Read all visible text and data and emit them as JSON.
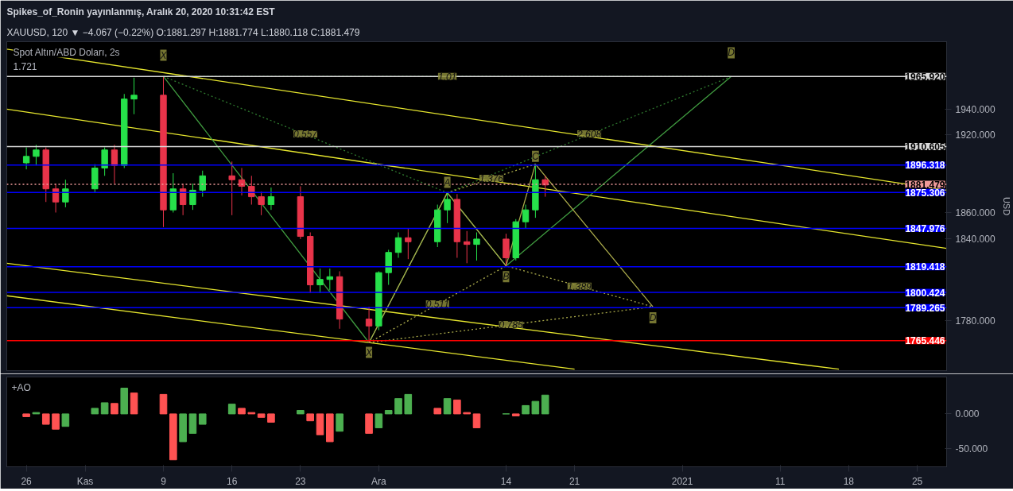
{
  "chart_data": [
    {
      "type": "candlestick",
      "title": "Spikes_of_Ronin yayınlanmış, Aralık 20, 2020 10:31:42 EST",
      "subtitle": "XAUUSD, 120 ▼ −4.067 (−0.22%) O:1881.297 H:1881.774 L:1880.118 C:1881.479",
      "ylabel": "USD",
      "x": [
        "2020-10-26",
        "2020-10-27",
        "2020-10-28",
        "2020-10-29",
        "2020-10-30",
        "2020-11-02",
        "2020-11-03",
        "2020-11-04",
        "2020-11-05",
        "2020-11-06",
        "2020-11-09",
        "2020-11-10",
        "2020-11-11",
        "2020-11-12",
        "2020-11-13",
        "2020-11-16",
        "2020-11-17",
        "2020-11-18",
        "2020-11-19",
        "2020-11-20",
        "2020-11-23",
        "2020-11-24",
        "2020-11-25",
        "2020-11-26",
        "2020-11-27",
        "2020-11-30",
        "2020-12-01",
        "2020-12-02",
        "2020-12-03",
        "2020-12-04",
        "2020-12-07",
        "2020-12-08",
        "2020-12-09",
        "2020-12-10",
        "2020-12-11",
        "2020-12-14",
        "2020-12-15",
        "2020-12-16",
        "2020-12-17",
        "2020-12-18"
      ],
      "ohlc": [
        [
          1898,
          1910,
          1893,
          1903
        ],
        [
          1903,
          1912,
          1896,
          1908
        ],
        [
          1908,
          1910,
          1868,
          1878
        ],
        [
          1878,
          1882,
          1860,
          1868
        ],
        [
          1868,
          1885,
          1864,
          1878
        ],
        [
          1878,
          1897,
          1875,
          1894
        ],
        [
          1894,
          1910,
          1888,
          1908
        ],
        [
          1908,
          1912,
          1882,
          1896
        ],
        [
          1896,
          1952,
          1894,
          1948
        ],
        [
          1948,
          1965,
          1936,
          1951
        ],
        [
          1951,
          1966,
          1849,
          1862
        ],
        [
          1862,
          1890,
          1860,
          1878
        ],
        [
          1878,
          1882,
          1858,
          1866
        ],
        [
          1866,
          1882,
          1862,
          1877
        ],
        [
          1877,
          1892,
          1872,
          1888
        ],
        [
          1888,
          1899,
          1858,
          1885
        ],
        [
          1885,
          1894,
          1873,
          1880
        ],
        [
          1880,
          1888,
          1866,
          1872
        ],
        [
          1872,
          1876,
          1858,
          1866
        ],
        [
          1866,
          1879,
          1862,
          1872
        ],
        [
          1872,
          1880,
          1840,
          1842
        ],
        [
          1842,
          1845,
          1800,
          1806
        ],
        [
          1806,
          1818,
          1800,
          1810
        ],
        [
          1810,
          1818,
          1802,
          1812
        ],
        [
          1812,
          1816,
          1774,
          1781
        ],
        [
          1781,
          1790,
          1764,
          1776
        ],
        [
          1776,
          1816,
          1773,
          1815
        ],
        [
          1815,
          1832,
          1806,
          1830
        ],
        [
          1830,
          1845,
          1826,
          1841
        ],
        [
          1841,
          1848,
          1825,
          1838
        ],
        [
          1838,
          1866,
          1834,
          1862
        ],
        [
          1862,
          1875,
          1852,
          1870
        ],
        [
          1870,
          1874,
          1826,
          1838
        ],
        [
          1838,
          1846,
          1822,
          1836
        ],
        [
          1836,
          1845,
          1824,
          1840
        ],
        [
          1840,
          1844,
          1820,
          1826
        ],
        [
          1826,
          1855,
          1824,
          1853
        ],
        [
          1853,
          1866,
          1848,
          1862
        ],
        [
          1862,
          1897,
          1856,
          1885
        ],
        [
          1885,
          1888,
          1872,
          1881
        ]
      ],
      "colors": [
        "#26e04a",
        "#26e04a",
        "#e8344a",
        "#e8344a",
        "#26e04a",
        "#26e04a",
        "#26e04a",
        "#e8344a",
        "#26e04a",
        "#26e04a",
        "#e8344a",
        "#26e04a",
        "#e8344a",
        "#26e04a",
        "#26e04a",
        "#e8344a",
        "#e8344a",
        "#e8344a",
        "#e8344a",
        "#26e04a",
        "#e8344a",
        "#e8344a",
        "#26e04a",
        "#26e04a",
        "#e8344a",
        "#e8344a",
        "#26e04a",
        "#26e04a",
        "#26e04a",
        "#e8344a",
        "#26e04a",
        "#26e04a",
        "#e8344a",
        "#e8344a",
        "#26e04a",
        "#e8344a",
        "#26e04a",
        "#26e04a",
        "#26e04a",
        "#e8344a"
      ],
      "series": [
        {
          "type": "line",
          "color": "#e6e62e",
          "x": [
            "2020-10-24",
            "2021-01-28"
          ],
          "values": [
            1988,
            1877
          ]
        },
        {
          "type": "line",
          "color": "#e6e62e",
          "x": [
            "2020-10-24",
            "2021-01-28"
          ],
          "values": [
            1940,
            1833
          ]
        },
        {
          "type": "line",
          "color": "#e6e62e",
          "x": [
            "2020-10-24",
            "2021-01-17"
          ],
          "values": [
            1822,
            1745
          ]
        },
        {
          "type": "line",
          "color": "#e6e62e",
          "x": [
            "2020-10-24",
            "2020-12-21"
          ],
          "values": [
            1798,
            1745
          ]
        },
        {
          "type": "line",
          "color": "#3f9a3f",
          "x": [
            "2020-11-09",
            "2020-11-30",
            "2020-12-08",
            "2020-12-14",
            "2021-01-06"
          ],
          "values": [
            1966,
            1764,
            1875,
            1820,
            1966
          ]
        },
        {
          "type": "line",
          "color": "#a9a94a",
          "x": [
            "2020-11-30",
            "2020-12-08",
            "2020-12-14",
            "2020-12-17",
            "2020-12-29"
          ],
          "values": [
            1764,
            1875,
            1820,
            1897,
            1790
          ]
        },
        {
          "type": "line",
          "color": "#2f7a2f",
          "line_style": "dotted",
          "x": [
            "2020-11-09",
            "2020-12-08",
            "2021-01-06"
          ],
          "values": [
            1966,
            1875,
            1966
          ]
        },
        {
          "type": "line",
          "color": "#2f7a2f",
          "line_style": "dotted",
          "x": [
            "2020-11-09",
            "2021-01-06"
          ],
          "values": [
            1966,
            1966
          ]
        },
        {
          "type": "line",
          "color": "#a9a94a",
          "line_style": "dotted",
          "x": [
            "2020-12-08",
            "2020-12-17"
          ],
          "values": [
            1875,
            1897
          ]
        },
        {
          "type": "line",
          "color": "#a9a94a",
          "line_style": "dotted",
          "x": [
            "2020-11-30",
            "2020-12-14",
            "2020-12-29"
          ],
          "values": [
            1764,
            1820,
            1790
          ]
        },
        {
          "type": "line",
          "color": "#a9a94a",
          "line_style": "dotted",
          "x": [
            "2020-11-30",
            "2020-12-29"
          ],
          "values": [
            1764,
            1790
          ]
        }
      ],
      "xlim": [
        "2020-10-24",
        "2021-01-28"
      ],
      "ylim": [
        1744,
        1994
      ],
      "log": true,
      "yticks": [
        {
          "value": 1780,
          "label": "1780.000"
        },
        {
          "value": 1840,
          "label": "1840.000"
        },
        {
          "value": 1860,
          "label": "1860.000"
        },
        {
          "value": 1920,
          "label": "1920.000"
        },
        {
          "value": 1940,
          "label": "1940.000"
        }
      ],
      "tick_labels": "y",
      "ref_lines": [
        {
          "axis": "y",
          "value": 1965.92,
          "label": "1965.920",
          "color": "#d9d9d9",
          "line_style": "solid"
        },
        {
          "axis": "y",
          "value": 1910.605,
          "label": "1910.605",
          "color": "#d9d9d9",
          "line_style": "solid"
        },
        {
          "axis": "y",
          "value": 1896.318,
          "label": "1896.318",
          "color": "#0000ff",
          "line_style": "solid"
        },
        {
          "axis": "y",
          "value": 1881.479,
          "label": "1881.479",
          "color": "#ef9a9a",
          "line_style": "dotted"
        },
        {
          "axis": "y",
          "value": 1875.306,
          "label": "1875.306",
          "color": "#0000ff",
          "line_style": "solid"
        },
        {
          "axis": "y",
          "value": 1847.976,
          "label": "1847.976",
          "color": "#0000ff",
          "line_style": "solid"
        },
        {
          "axis": "y",
          "value": 1819.418,
          "label": "1819.418",
          "color": "#0000ff",
          "line_style": "solid"
        },
        {
          "axis": "y",
          "value": 1800.424,
          "label": "1800.424",
          "color": "#0000ff",
          "line_style": "solid"
        },
        {
          "axis": "y",
          "value": 1789.265,
          "label": "1789.265",
          "color": "#0000ff",
          "line_style": "solid"
        },
        {
          "axis": "y",
          "value": 1765.446,
          "label": "1765.446",
          "color": "#ff0000",
          "line_style": "solid"
        }
      ],
      "annotations": [
        "Spot Altın/ABD Doları, 2s",
        {
          "text": "X",
          "x": "2020-11-09",
          "y": 1983
        },
        {
          "text": "D",
          "x": "2021-01-06",
          "y": 1985
        },
        {
          "text": "1.01",
          "x": "2020-12-08",
          "y": 1966
        },
        {
          "text": "0.557",
          "x": "2020-11-23T12:00",
          "y": 1920.5
        },
        {
          "text": "2.608",
          "x": "2020-12-22T12:00",
          "y": 1920.5
        },
        "1.721",
        {
          "text": "X",
          "x": "2020-11-30",
          "y": 1757
        },
        {
          "text": "A",
          "x": "2020-12-08",
          "y": 1883
        },
        {
          "text": "B",
          "x": "2020-12-14",
          "y": 1812
        },
        {
          "text": "C",
          "x": "2020-12-17",
          "y": 1903
        },
        {
          "text": "D",
          "x": "2020-12-29",
          "y": 1782
        },
        {
          "text": "1.376",
          "x": "2020-12-12T12:00",
          "y": 1886
        },
        {
          "text": "0.511",
          "x": "2020-12-07",
          "y": 1792
        },
        {
          "text": "1.389",
          "x": "2020-12-21T12:00",
          "y": 1805
        },
        {
          "text": "0.785",
          "x": "2020-12-14T12:00",
          "y": 1777
        }
      ]
    },
    {
      "type": "bar",
      "title": "+AO",
      "x": [
        "2020-10-26",
        "2020-10-27",
        "2020-10-28",
        "2020-10-29",
        "2020-10-30",
        "2020-11-02",
        "2020-11-03",
        "2020-11-04",
        "2020-11-05",
        "2020-11-06",
        "2020-11-09",
        "2020-11-10",
        "2020-11-11",
        "2020-11-12",
        "2020-11-13",
        "2020-11-16",
        "2020-11-17",
        "2020-11-18",
        "2020-11-19",
        "2020-11-20",
        "2020-11-23",
        "2020-11-24",
        "2020-11-25",
        "2020-11-26",
        "2020-11-27",
        "2020-11-30",
        "2020-12-01",
        "2020-12-02",
        "2020-12-03",
        "2020-12-04",
        "2020-12-07",
        "2020-12-08",
        "2020-12-09",
        "2020-12-10",
        "2020-12-11",
        "2020-12-14",
        "2020-12-15",
        "2020-12-16",
        "2020-12-17",
        "2020-12-18"
      ],
      "values": [
        -4,
        2,
        -15,
        -22,
        -18,
        8,
        16,
        15,
        37,
        30,
        28,
        -66,
        -40,
        -28,
        -15,
        14,
        8,
        2,
        -5,
        -12,
        5,
        -10,
        -30,
        -40,
        -25,
        -28,
        -20,
        5,
        22,
        28,
        8,
        22,
        20,
        2,
        -20,
        0,
        -3,
        12,
        18,
        27
      ],
      "colors": [
        "#ff5252",
        "#4caf50",
        "#ff5252",
        "#ff5252",
        "#4caf50",
        "#4caf50",
        "#4caf50",
        "#ff5252",
        "#4caf50",
        "#ff5252",
        "#ff5252",
        "#ff5252",
        "#4caf50",
        "#4caf50",
        "#4caf50",
        "#4caf50",
        "#ff5252",
        "#ff5252",
        "#ff5252",
        "#ff5252",
        "#4caf50",
        "#ff5252",
        "#ff5252",
        "#ff5252",
        "#4caf50",
        "#ff5252",
        "#4caf50",
        "#4caf50",
        "#4caf50",
        "#4caf50",
        "#ff5252",
        "#4caf50",
        "#ff5252",
        "#ff5252",
        "#ff5252",
        "#4caf50",
        "#ff5252",
        "#4caf50",
        "#4caf50",
        "#4caf50"
      ],
      "xlim": [
        "2020-10-24",
        "2021-01-28"
      ],
      "xticks": [
        {
          "value": "2020-10-26",
          "label": "26"
        },
        {
          "value": "2020-11-01",
          "label": "Kas"
        },
        {
          "value": "2020-11-09",
          "label": "9"
        },
        {
          "value": "2020-11-16",
          "label": "16"
        },
        {
          "value": "2020-11-23",
          "label": "23"
        },
        {
          "value": "2020-12-01",
          "label": "Ara"
        },
        {
          "value": "2020-12-14",
          "label": "14"
        },
        {
          "value": "2020-12-21",
          "label": "21"
        },
        {
          "value": "2021-01-01",
          "label": "2021"
        },
        {
          "value": "2021-01-11",
          "label": "11"
        },
        {
          "value": "2021-01-18",
          "label": "18"
        },
        {
          "value": "2021-01-25",
          "label": "25"
        }
      ],
      "ylim": [
        -76,
        53
      ],
      "yticks": [
        {
          "value": 0,
          "label": "0.000"
        },
        {
          "value": -50,
          "label": "-50.000"
        }
      ]
    }
  ]
}
